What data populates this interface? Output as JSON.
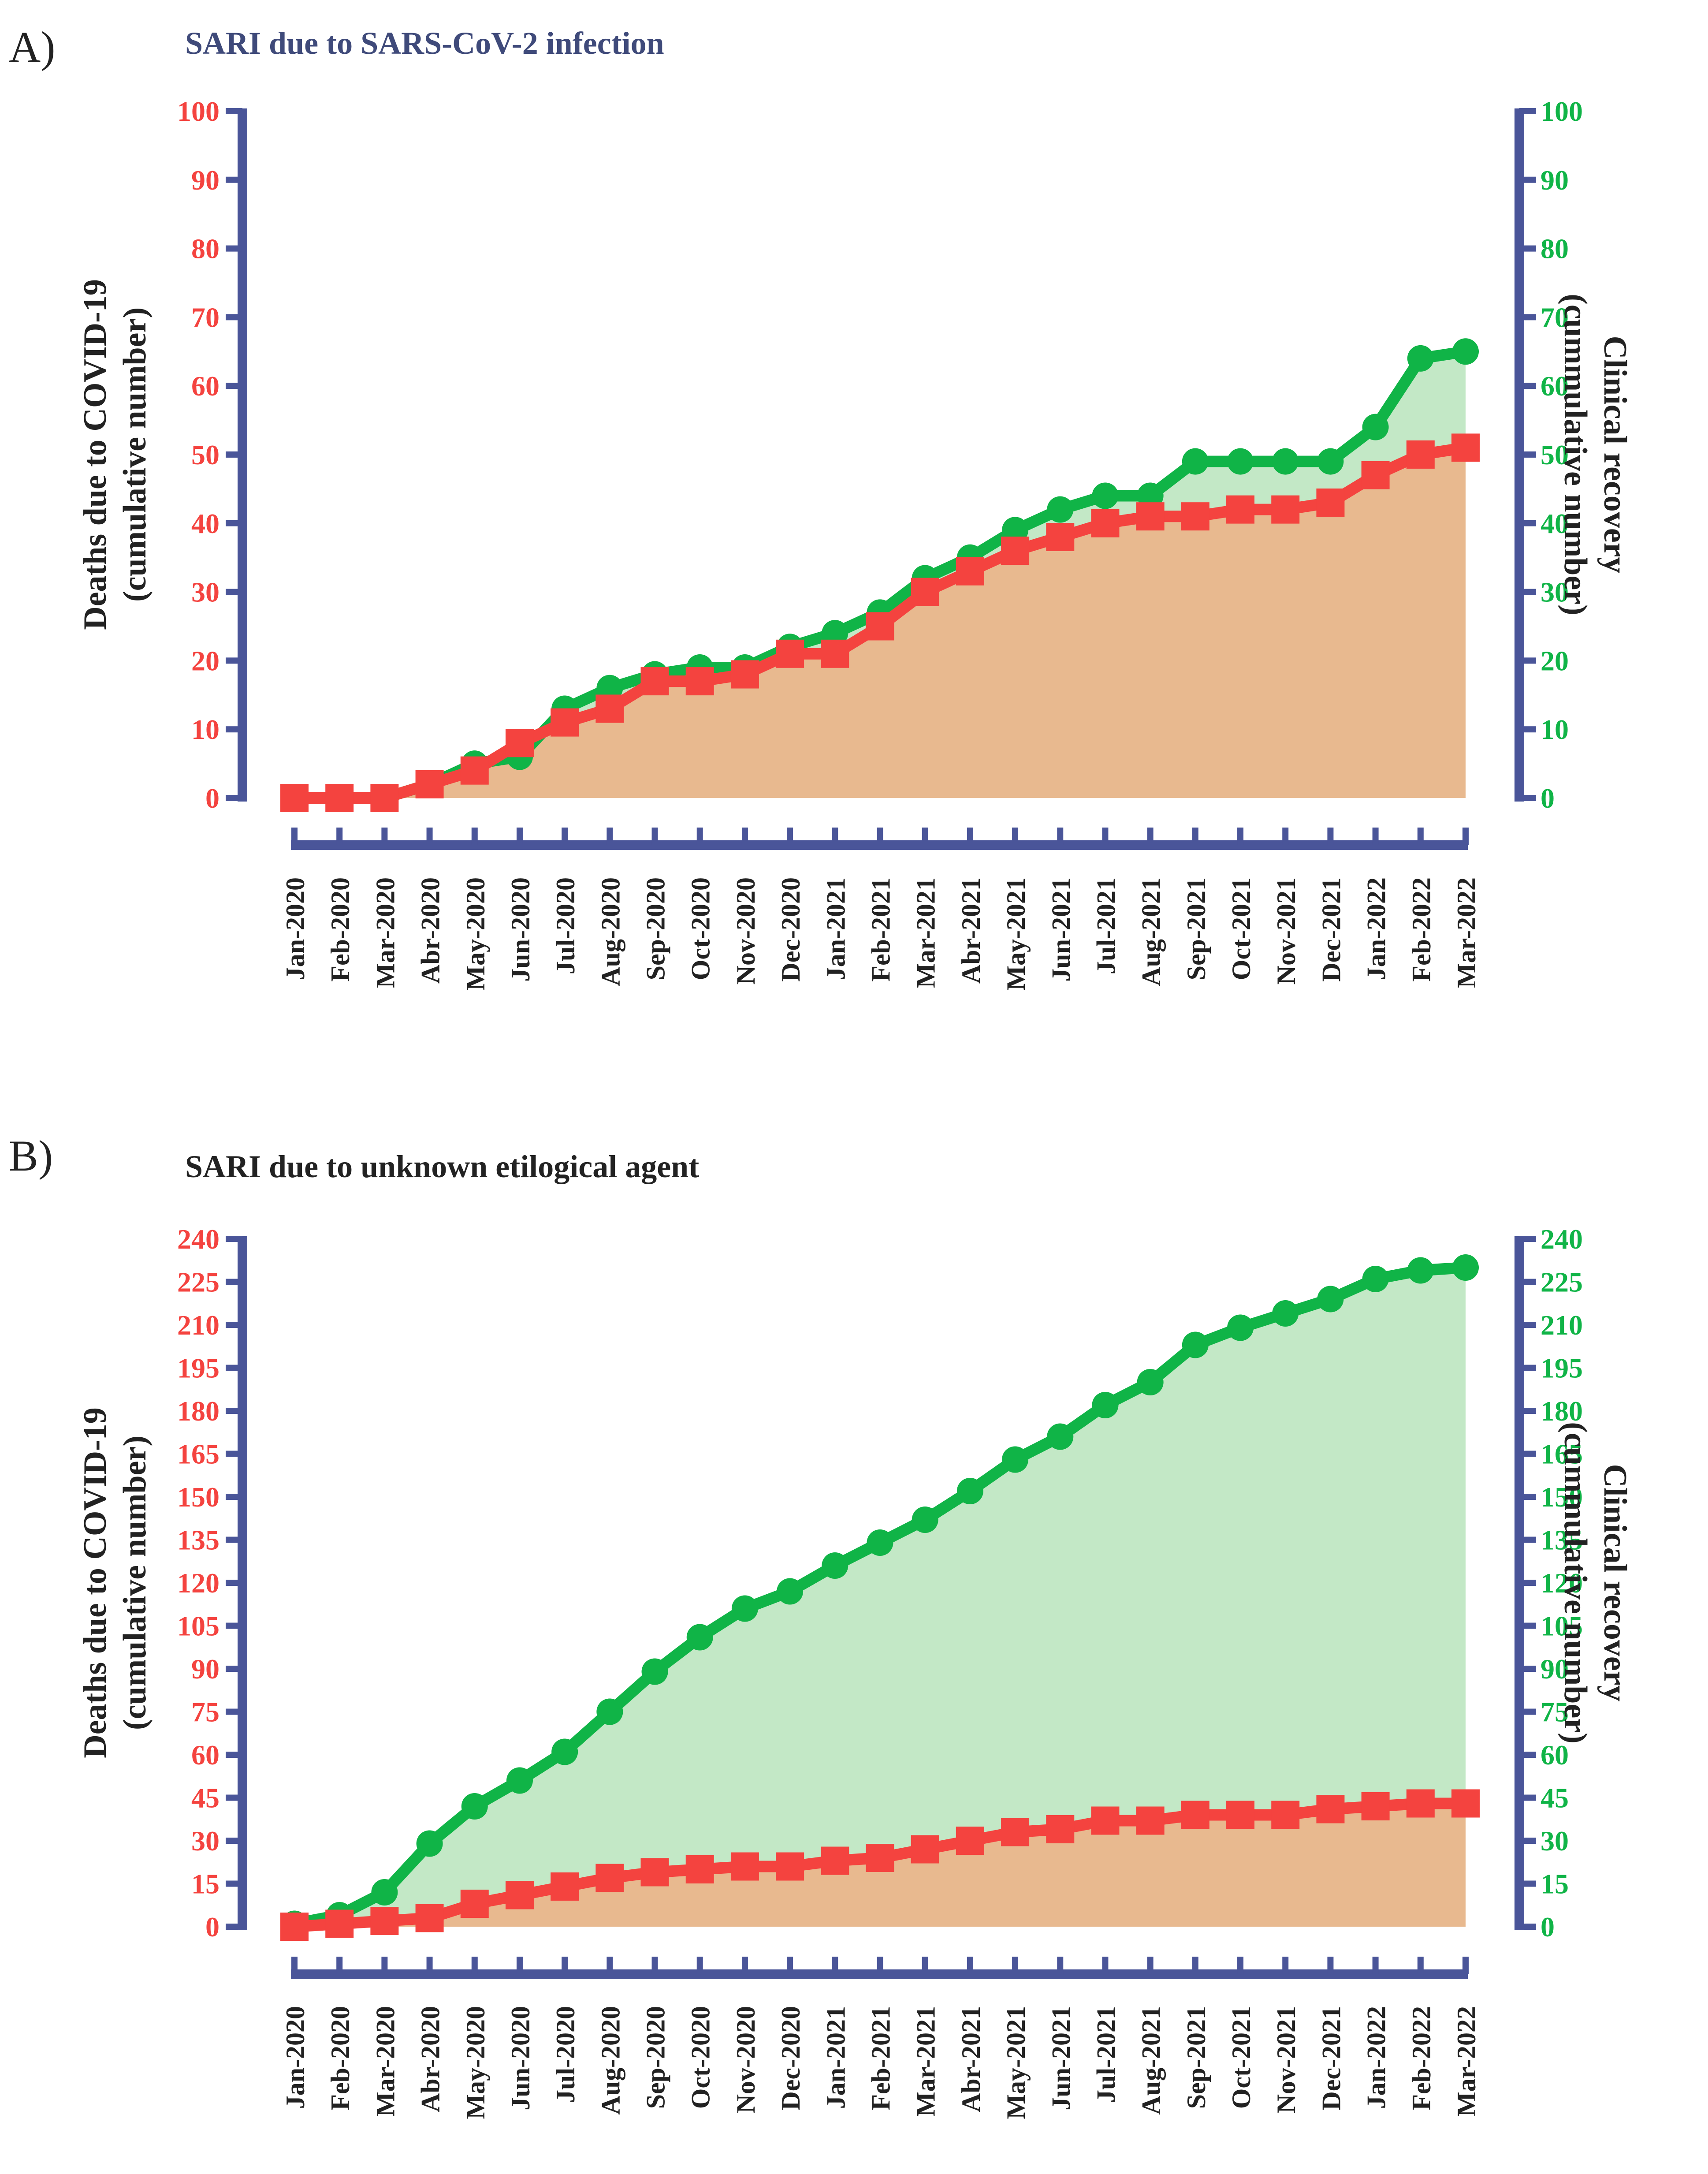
{
  "colors": {
    "axis": "#4a5599",
    "deaths": "#f4433f",
    "recovery": "#10b447",
    "deaths_fill": "#e8b98f",
    "recovery_fill": "#c3e8c6",
    "title_a": "#3f4a7a",
    "title_b": "#222222"
  },
  "chart_data": [
    {
      "panel_label": "A)",
      "type": "area",
      "title": "SARI due to SARS-CoV-2 infection",
      "ylabel_left": [
        "Deaths due to COVID-19",
        "(cumulative number)"
      ],
      "ylabel_right": [
        "Clinical recovery",
        "(cummulative number)"
      ],
      "ylim": [
        0,
        100
      ],
      "yticks": [
        0,
        10,
        20,
        30,
        40,
        50,
        60,
        70,
        80,
        90,
        100
      ],
      "categories": [
        "Jan-2020",
        "Feb-2020",
        "Mar-2020",
        "Abr-2020",
        "May-2020",
        "Jun-2020",
        "Jul-2020",
        "Aug-2020",
        "Sep-2020",
        "Oct-2020",
        "Nov-2020",
        "Dec-2020",
        "Jan-2021",
        "Feb-2021",
        "Mar-2021",
        "Abr-2021",
        "May-2021",
        "Jun-2021",
        "Jul-2021",
        "Aug-2021",
        "Sep-2021",
        "Oct-2021",
        "Nov-2021",
        "Dec-2021",
        "Jan-2022",
        "Feb-2022",
        "Mar-2022"
      ],
      "series": [
        {
          "name": "Clinical recovery",
          "axis": "right",
          "marker": "circle",
          "values": [
            0,
            0,
            0,
            2,
            5,
            6,
            13,
            16,
            18,
            19,
            19,
            22,
            24,
            27,
            32,
            35,
            39,
            42,
            44,
            44,
            49,
            49,
            49,
            49,
            54,
            64,
            65
          ]
        },
        {
          "name": "Deaths due to COVID-19",
          "axis": "left",
          "marker": "square",
          "values": [
            0,
            0,
            0,
            2,
            4,
            8,
            11,
            13,
            17,
            17,
            18,
            21,
            21,
            25,
            30,
            33,
            36,
            38,
            40,
            41,
            41,
            42,
            42,
            43,
            47,
            50,
            51
          ]
        }
      ]
    },
    {
      "panel_label": "B)",
      "type": "area",
      "title": "SARI due to unknown etilogical agent",
      "ylabel_left": [
        "Deaths due to COVID-19",
        "(cumulative number)"
      ],
      "ylabel_right": [
        "Clinical recovery",
        "(cummulative number)"
      ],
      "ylim": [
        0,
        240
      ],
      "yticks": [
        0,
        15,
        30,
        45,
        60,
        75,
        90,
        105,
        120,
        135,
        150,
        165,
        180,
        195,
        210,
        225,
        240
      ],
      "categories": [
        "Jan-2020",
        "Feb-2020",
        "Mar-2020",
        "Abr-2020",
        "May-2020",
        "Jun-2020",
        "Jul-2020",
        "Aug-2020",
        "Sep-2020",
        "Oct-2020",
        "Nov-2020",
        "Dec-2020",
        "Jan-2021",
        "Feb-2021",
        "Mar-2021",
        "Abr-2021",
        "May-2021",
        "Jun-2021",
        "Jul-2021",
        "Aug-2021",
        "Sep-2021",
        "Oct-2021",
        "Nov-2021",
        "Dec-2021",
        "Jan-2022",
        "Feb-2022",
        "Mar-2022"
      ],
      "series": [
        {
          "name": "Clinical recovery",
          "axis": "right",
          "marker": "circle",
          "values": [
            1,
            4,
            12,
            29,
            42,
            51,
            61,
            75,
            89,
            101,
            111,
            117,
            126,
            134,
            142,
            152,
            163,
            171,
            182,
            190,
            203,
            209,
            214,
            219,
            226,
            229,
            230
          ]
        },
        {
          "name": "Deaths due to COVID-19",
          "axis": "left",
          "marker": "square",
          "values": [
            0,
            1,
            2,
            3,
            8,
            11,
            14,
            17,
            19,
            20,
            21,
            21,
            23,
            24,
            27,
            30,
            33,
            34,
            37,
            37,
            39,
            39,
            39,
            41,
            42,
            43,
            43
          ]
        }
      ]
    }
  ]
}
